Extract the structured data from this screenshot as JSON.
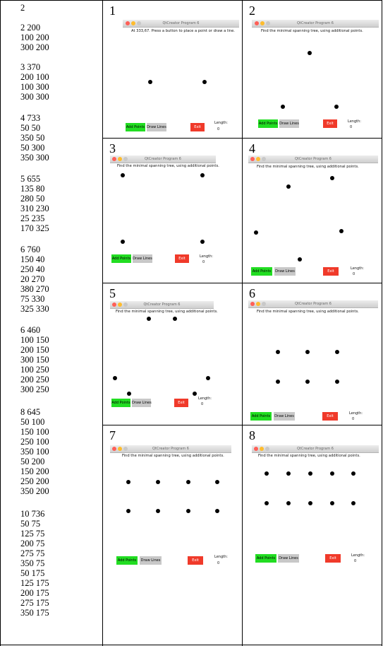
{
  "input_lines": [
    "2",
    "",
    "2 200",
    "100 200",
    "300 200",
    "",
    "3 370",
    "200 100",
    "100 300",
    "300 300",
    "",
    "4 733",
    "50 50",
    "350 50",
    "50 300",
    "350 300",
    "",
    "5 655",
    "135 80",
    "280 50",
    "310 230",
    "25 235",
    "170 325",
    "",
    "6 760",
    "150 40",
    "250 40",
    "20 270",
    "380 270",
    "75 330",
    "325 330",
    "",
    "6 460",
    "100 150",
    "200 150",
    "300 150",
    "100 250",
    "200 250",
    "300 250",
    "",
    "8 645",
    "50 100",
    "150 100",
    "250 100",
    "350 100",
    "50 200",
    "150 200",
    "250 200",
    "350 200",
    "",
    "10 736",
    "50 75",
    "125 75",
    "200 75",
    "275 75",
    "350 75",
    "50 175",
    "125 175",
    "200 175",
    "275 175",
    "350 175"
  ],
  "window_title": "QtCreator Program 6",
  "buttons": {
    "add": "Add Points",
    "draw": "Draw Lines",
    "exit": "Exit"
  },
  "length_label": "Length:",
  "panels": [
    {
      "number": "1",
      "message": "At 333,67. Press a button to place a point or draw a line.",
      "length": "0"
    },
    {
      "number": "2",
      "message": "Find the minimal spanning tree, using additional points.",
      "length": "0"
    },
    {
      "number": "3",
      "message": "Find the minimal spanning tree, using additional points.",
      "length": "0"
    },
    {
      "number": "4",
      "message": "Find the minimal spanning tree, using additional points.",
      "length": "0"
    },
    {
      "number": "5",
      "message": "Find the minimal spanning tree, using additional points.",
      "length": "0"
    },
    {
      "number": "6",
      "message": "Find the minimal spanning tree, using additional points.",
      "length": "0"
    },
    {
      "number": "7",
      "message": "Find the minimal spanning tree, using additional points.",
      "length": "0"
    },
    {
      "number": "8",
      "message": "Find the minimal spanning tree, using additional points.",
      "length": "0"
    }
  ]
}
